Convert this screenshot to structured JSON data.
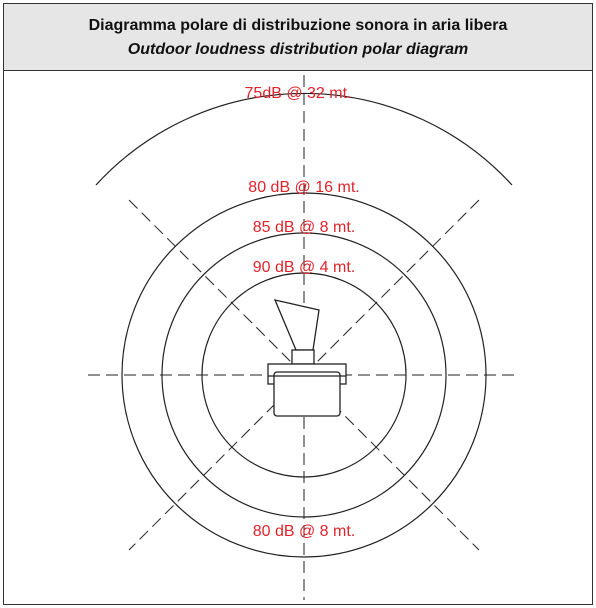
{
  "header": {
    "title": "Diagramma polare di distribuzione sonora in aria libera",
    "subtitle": "Outdoor loudness distribution polar diagram"
  },
  "labels": [
    "75dB @ 32 mt.",
    "80 dB @ 16 mt.",
    "85 dB @ 8 mt.",
    "90 dB @ 4 mt.",
    "80 dB @ 8 mt."
  ]
}
